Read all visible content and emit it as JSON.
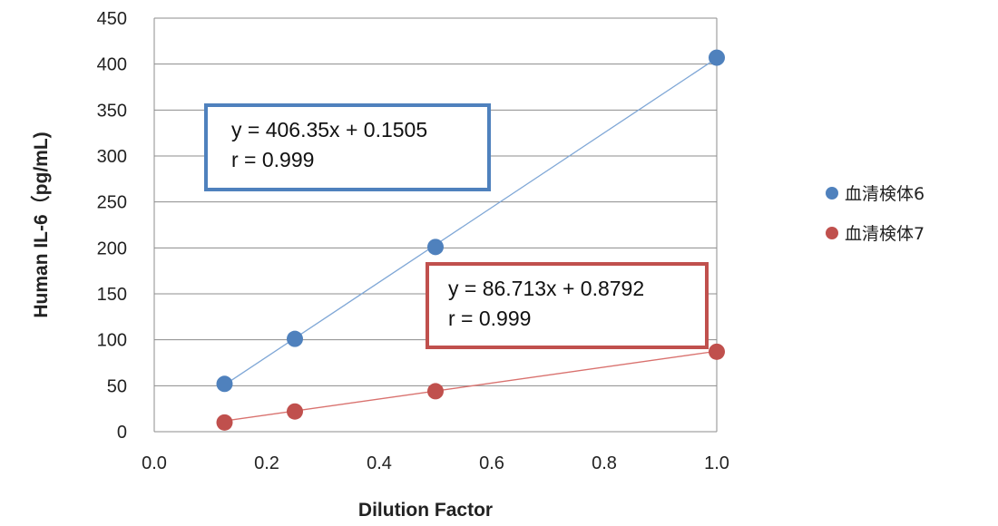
{
  "chart_data": {
    "type": "scatter",
    "title": "",
    "xlabel": "Dilution Factor",
    "ylabel": "Human IL-6（pg/mL)",
    "xlim": [
      0,
      1
    ],
    "ylim": [
      0,
      450
    ],
    "x_ticks": [
      "0.0",
      "0.2",
      "0.4",
      "0.6",
      "0.8",
      "1.0"
    ],
    "y_ticks": [
      "0",
      "50",
      "100",
      "150",
      "200",
      "250",
      "300",
      "350",
      "400",
      "450"
    ],
    "grid": "horizontal",
    "legend_position": "right",
    "series": [
      {
        "name": "血清検体6",
        "color": "#4f81bd",
        "trendline_color": "#7fa7d6",
        "x": [
          0.125,
          0.25,
          0.5,
          1.0
        ],
        "y": [
          52,
          101,
          201,
          407
        ],
        "trendline": {
          "slope": 406.35,
          "intercept": 0.1505
        },
        "annotation": [
          "y = 406.35x + 0.1505",
          "r = 0.999"
        ]
      },
      {
        "name": "血清検体7",
        "color": "#c0504d",
        "trendline_color": "#d9716e",
        "x": [
          0.125,
          0.25,
          0.5,
          1.0
        ],
        "y": [
          10,
          22,
          44,
          87
        ],
        "trendline": {
          "slope": 86.713,
          "intercept": 0.8792
        },
        "annotation": [
          "y = 86.713x + 0.8792",
          "r = 0.999"
        ]
      }
    ]
  }
}
